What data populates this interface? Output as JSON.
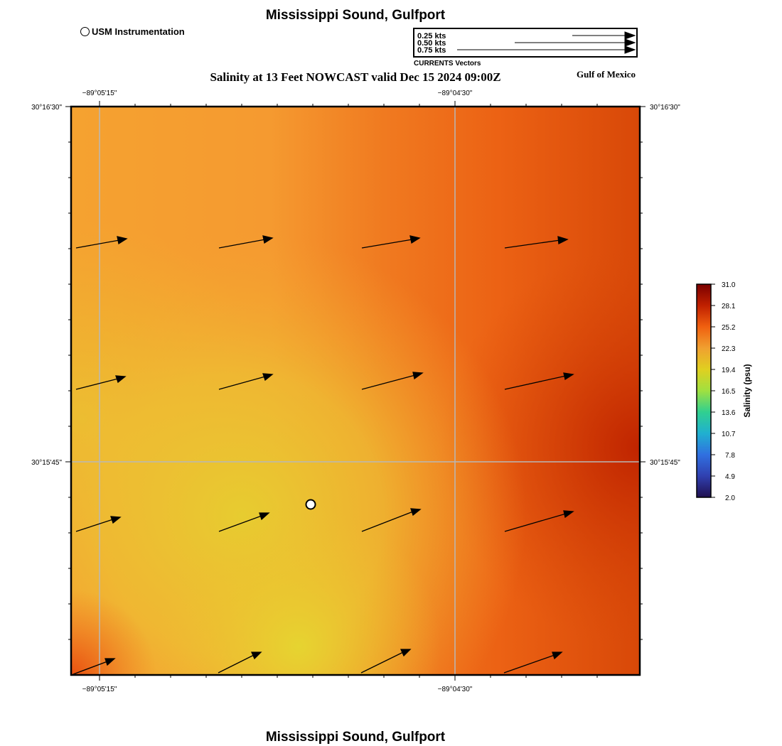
{
  "header": {
    "title": "Mississippi Sound, Gulfport",
    "usm_legend": "USM Instrumentation",
    "subtitle": "Salinity at 13 Feet NOWCAST valid Dec 15 2024 09:00Z",
    "region_label": "Gulf of Mexico"
  },
  "vector_legend": {
    "entries": [
      "0.25 kts",
      "0.50 kts",
      "0.75 kts"
    ],
    "caption": "CURRENTS Vectors"
  },
  "map": {
    "lon_labels": [
      "−89°05'15\"",
      "−89°04'30\""
    ],
    "lat_labels": [
      "30°16'30\"",
      "30°15'45\""
    ]
  },
  "colorbar": {
    "title": "Salinity (psu)",
    "ticks": [
      "31.0",
      "28.1",
      "25.2",
      "22.3",
      "19.4",
      "16.5",
      "13.6",
      "10.7",
      "7.8",
      "4.9",
      "2.0"
    ],
    "colors": [
      "#7a0000",
      "#c02000",
      "#f06010",
      "#f0a030",
      "#e0d020",
      "#a0e040",
      "#30d090",
      "#20b0d0",
      "#3070e0",
      "#3040b0",
      "#201050"
    ]
  },
  "footer": {
    "title": "Mississippi Sound, Gulfport"
  }
}
